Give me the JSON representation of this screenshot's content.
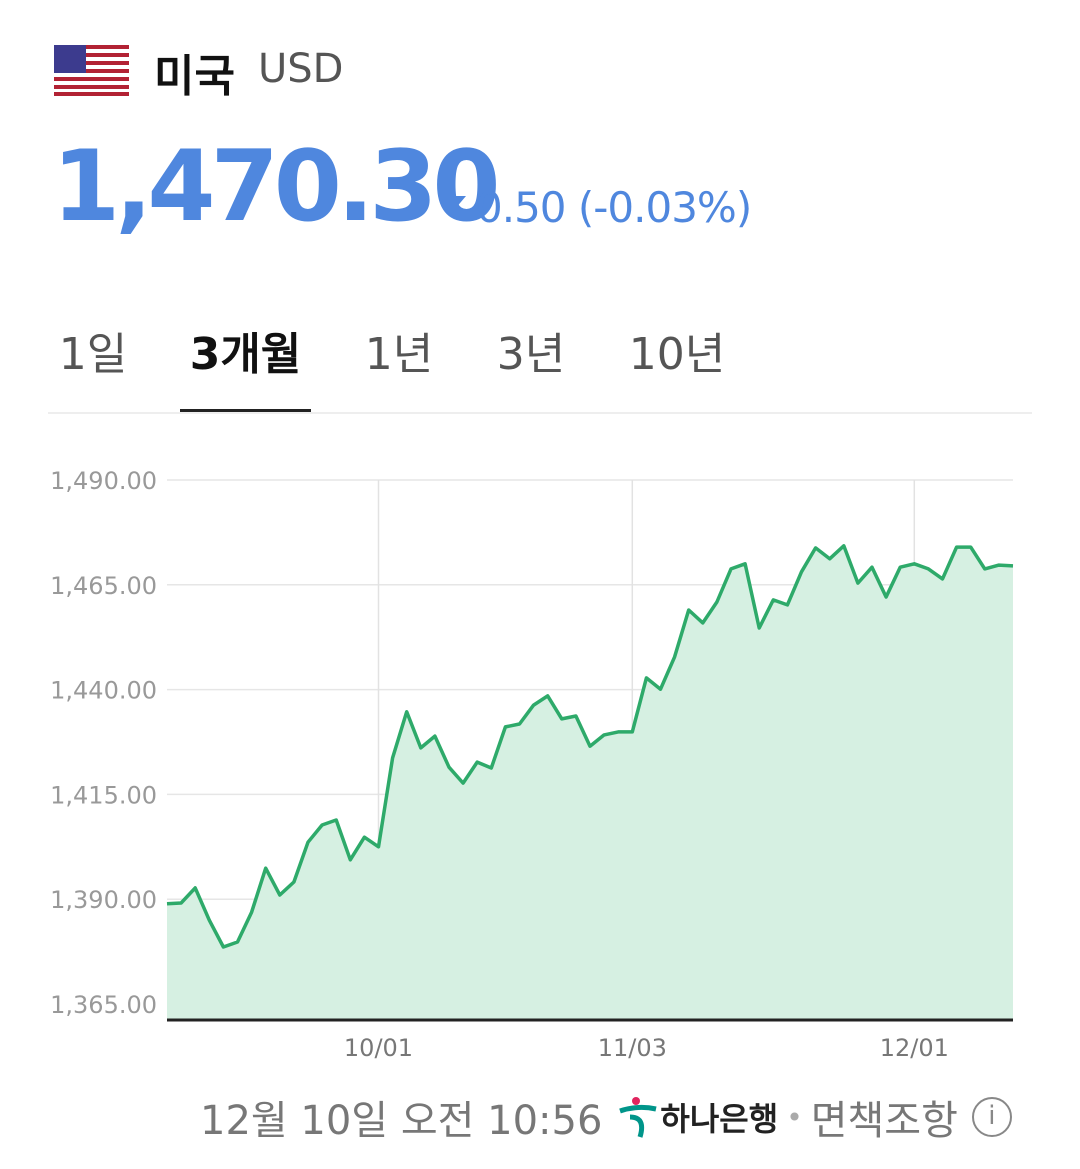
{
  "header": {
    "country": "미국",
    "currency_code": "USD",
    "flag_icon": "us-flag-icon"
  },
  "quote": {
    "price": "1,470.30",
    "direction": "down",
    "change": "0.50 (-0.03%)",
    "color": "#4f87de"
  },
  "tabs": [
    {
      "label": "1일",
      "active": false
    },
    {
      "label": "3개월",
      "active": true
    },
    {
      "label": "1년",
      "active": false
    },
    {
      "label": "3년",
      "active": false
    },
    {
      "label": "10년",
      "active": false
    }
  ],
  "chart_data": {
    "type": "area",
    "ylim": [
      1365,
      1490
    ],
    "y_ticks": [
      "1,490.00",
      "1,465.00",
      "1,440.00",
      "1,415.00",
      "1,390.00",
      "1,365.00"
    ],
    "y_tick_values": [
      1490,
      1465,
      1440,
      1415,
      1390,
      1365
    ],
    "x_ticks": [
      {
        "label": "10/01",
        "index": 15
      },
      {
        "label": "11/03",
        "index": 33
      },
      {
        "label": "12/01",
        "index": 53
      }
    ],
    "grid": true,
    "line_color": "#2eaa6a",
    "fill_color": "#d6f0e2",
    "values": [
      1388.9,
      1389.1,
      1392.7,
      1385.0,
      1378.6,
      1379.8,
      1386.9,
      1397.4,
      1391.0,
      1394.1,
      1403.6,
      1407.7,
      1408.9,
      1399.4,
      1404.8,
      1402.5,
      1423.7,
      1434.7,
      1426.1,
      1428.9,
      1421.5,
      1417.7,
      1422.7,
      1421.3,
      1431.1,
      1431.8,
      1436.3,
      1438.5,
      1433.0,
      1433.7,
      1426.5,
      1429.2,
      1429.9,
      1429.9,
      1442.8,
      1440.1,
      1447.8,
      1459.0,
      1455.9,
      1460.9,
      1468.8,
      1470.0,
      1454.7,
      1461.4,
      1460.2,
      1468.1,
      1473.8,
      1471.2,
      1474.3,
      1465.4,
      1469.2,
      1462.1,
      1469.2,
      1470.0,
      1468.8,
      1466.4,
      1474.0,
      1474.0,
      1468.8,
      1469.7,
      1469.5
    ]
  },
  "footer": {
    "timestamp": "12월 10일 오전 10:56",
    "bank": "하나은행",
    "separator": "•",
    "disclaimer": "면책조항",
    "info_icon": "i"
  }
}
